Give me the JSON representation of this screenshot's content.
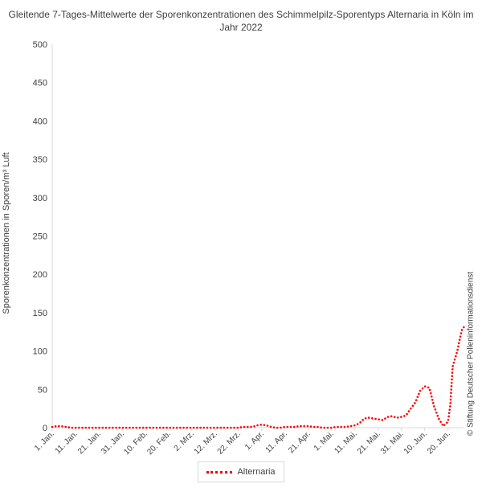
{
  "chart_data": {
    "type": "line",
    "title": "Gleitende 7-Tages-Mittelwerte der Sporenkonzentrationen des Schimmelpilz-Sporentyps Alternaria in Köln im Jahr 2022",
    "xlabel": "",
    "ylabel": "Sporenkonzentrationen in Sporen/m³ Luft",
    "ylim": [
      0,
      500
    ],
    "yticks": [
      0,
      50,
      100,
      150,
      200,
      250,
      300,
      350,
      400,
      450,
      500
    ],
    "xlim": [
      1,
      178
    ],
    "xticks": [
      {
        "day": 1,
        "label": "1. Jan."
      },
      {
        "day": 11,
        "label": "11. Jan."
      },
      {
        "day": 21,
        "label": "21. Jan."
      },
      {
        "day": 31,
        "label": "31. Jan."
      },
      {
        "day": 41,
        "label": "10. Feb."
      },
      {
        "day": 51,
        "label": "20. Feb."
      },
      {
        "day": 61,
        "label": "2. Mrz."
      },
      {
        "day": 71,
        "label": "12. Mrz."
      },
      {
        "day": 81,
        "label": "22. Mrz."
      },
      {
        "day": 91,
        "label": "1. Apr."
      },
      {
        "day": 101,
        "label": "11. Apr."
      },
      {
        "day": 111,
        "label": "21. Apr."
      },
      {
        "day": 121,
        "label": "1. Mai."
      },
      {
        "day": 131,
        "label": "11. Mai."
      },
      {
        "day": 141,
        "label": "21. Mai."
      },
      {
        "day": 151,
        "label": "31. Mai."
      },
      {
        "day": 161,
        "label": "10. Jun."
      },
      {
        "day": 171,
        "label": "20. Jun."
      }
    ],
    "grid": false,
    "legend_position": "bottom",
    "series": [
      {
        "name": "Alternaria",
        "color": "#ff0000",
        "style": "dotted",
        "x": [
          1,
          3,
          5,
          7,
          9,
          11,
          13,
          15,
          17,
          19,
          21,
          23,
          25,
          27,
          29,
          31,
          33,
          35,
          37,
          39,
          41,
          43,
          45,
          47,
          49,
          51,
          53,
          55,
          57,
          59,
          61,
          63,
          65,
          67,
          69,
          71,
          73,
          75,
          77,
          79,
          81,
          83,
          85,
          87,
          89,
          91,
          93,
          95,
          97,
          99,
          101,
          103,
          105,
          107,
          109,
          111,
          113,
          115,
          117,
          119,
          121,
          123,
          125,
          127,
          129,
          131,
          133,
          135,
          137,
          139,
          141,
          143,
          145,
          147,
          149,
          151,
          153,
          155,
          157,
          159,
          161,
          163,
          165,
          167,
          169,
          171,
          172,
          173,
          174,
          175,
          176,
          177,
          178
        ],
        "y": [
          1,
          2,
          2,
          1,
          0,
          0,
          0,
          0,
          0,
          0,
          0,
          0,
          0,
          0,
          0,
          0,
          0,
          0,
          0,
          0,
          0,
          0,
          0,
          0,
          0,
          0,
          0,
          0,
          0,
          0,
          0,
          0,
          0,
          0,
          0,
          0,
          0,
          0,
          0,
          0,
          0,
          1,
          1,
          1,
          3,
          4,
          3,
          1,
          0,
          0,
          1,
          1,
          1,
          2,
          2,
          2,
          1,
          1,
          0,
          0,
          0,
          1,
          1,
          1,
          2,
          3,
          6,
          12,
          13,
          12,
          11,
          10,
          14,
          15,
          13,
          14,
          16,
          25,
          33,
          48,
          54,
          52,
          28,
          12,
          2,
          8,
          30,
          80,
          90,
          100,
          115,
          128,
          132
        ]
      }
    ]
  },
  "credit": "© Stiftung Deutscher Polleninformationsdienst"
}
